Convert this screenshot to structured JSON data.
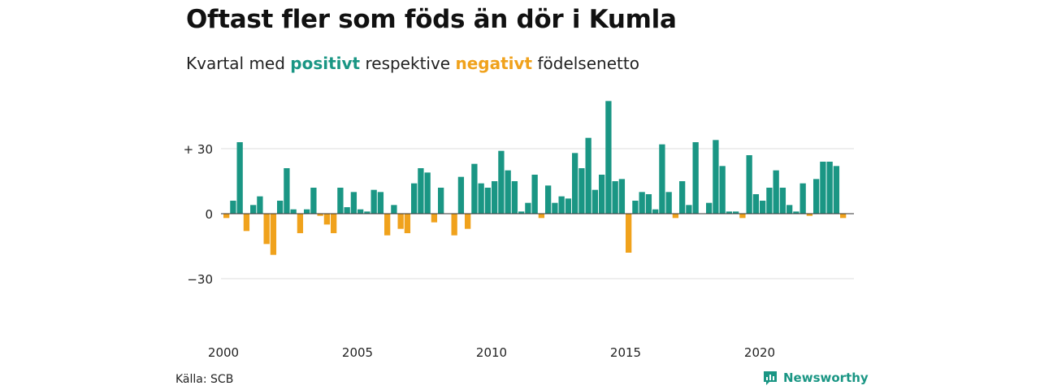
{
  "header": {
    "title": "Oftast fler som föds än dör i Kumla",
    "subtitle_pre": "Kvartal med ",
    "subtitle_pos": "positivt",
    "subtitle_mid": " respektive ",
    "subtitle_neg": "negativt",
    "subtitle_post": " födelsenetto"
  },
  "footer": {
    "source": "Källa: SCB",
    "brand": "Newsworthy",
    "brand_icon": "newsworthy-logo-icon"
  },
  "colors": {
    "positive": "#1a9684",
    "negative": "#f0a21c",
    "grid": "#dddddd",
    "zero_line": "#333333"
  },
  "chart_data": {
    "type": "bar",
    "x_start": "2000 Q1",
    "x_end": "2023 Q1",
    "xticks": [
      "2000",
      "2005",
      "2010",
      "2015",
      "2020"
    ],
    "yticks": [
      30,
      0,
      -30
    ],
    "ytick_labels": [
      "+ 30",
      "0",
      "−30"
    ],
    "ylim": [
      -45,
      52
    ],
    "grid": true,
    "values": [
      -2,
      6,
      33,
      -8,
      4,
      8,
      -14,
      -19,
      6,
      21,
      2,
      -9,
      2,
      12,
      -1,
      -5,
      -9,
      12,
      3,
      10,
      2,
      1,
      11,
      10,
      -10,
      4,
      -7,
      -9,
      14,
      21,
      19,
      -4,
      12,
      0,
      -10,
      17,
      -7,
      23,
      14,
      12,
      15,
      29,
      20,
      15,
      1,
      5,
      18,
      -2,
      13,
      5,
      8,
      7,
      28,
      21,
      35,
      11,
      18,
      52,
      15,
      16,
      -18,
      6,
      10,
      9,
      2,
      32,
      10,
      -2,
      15,
      4,
      33,
      0,
      5,
      34,
      22,
      1,
      1,
      -2,
      27,
      9,
      6,
      12,
      20,
      12,
      4,
      1,
      14,
      -1,
      16,
      24,
      24,
      22,
      -2
    ]
  }
}
